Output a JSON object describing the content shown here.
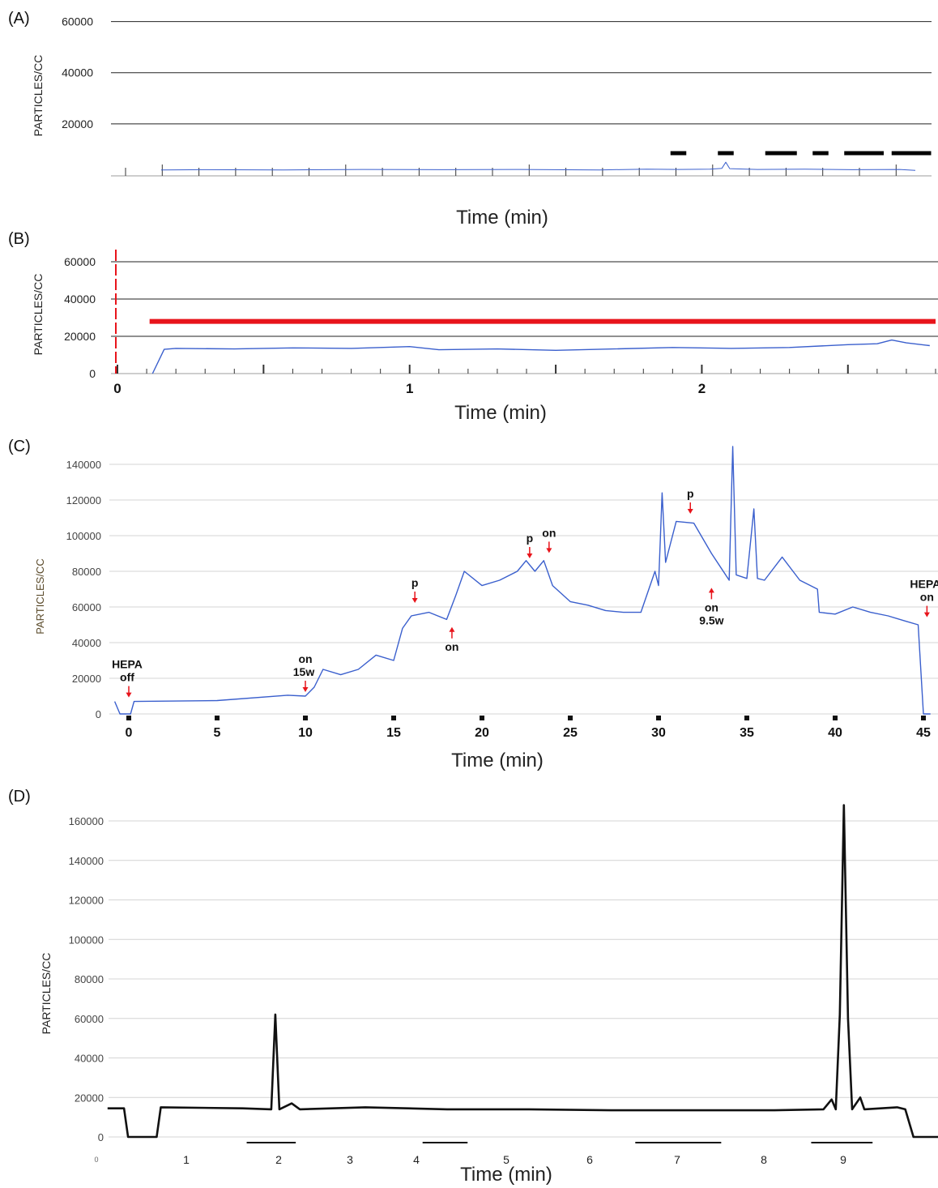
{
  "colors": {
    "trace_blue": "#3a5fcd",
    "trace_black": "#111111",
    "red_bar": "#e8141b",
    "arrow_red": "#e8141b",
    "grid_gray": "#d4d4d4"
  },
  "chart_data": [
    {
      "panel": "(A)",
      "type": "line",
      "ylabel": "PARTICLES/CC",
      "xlabel": "Time (min)",
      "yticks": [
        20000,
        40000,
        60000
      ],
      "ylim": [
        0,
        70000
      ],
      "xlim": [
        0,
        100
      ],
      "grid": true,
      "series": [
        {
          "values": [
            [
              4.5,
              2000
            ],
            [
              10,
              2100
            ],
            [
              20,
              2000
            ],
            [
              30,
              2200
            ],
            [
              40,
              2100
            ],
            [
              50,
              2200
            ],
            [
              60,
              2000
            ],
            [
              66,
              2300
            ],
            [
              70,
              2200
            ],
            [
              74,
              2300
            ],
            [
              75.5,
              2600
            ],
            [
              76,
              5000
            ],
            [
              76.5,
              2500
            ],
            [
              80,
              2200
            ],
            [
              86,
              2300
            ],
            [
              92,
              2100
            ],
            [
              98,
              2200
            ],
            [
              100,
              1800
            ]
          ]
        }
      ],
      "bars": [
        [
          69,
          71
        ],
        [
          75,
          77
        ],
        [
          81,
          85
        ],
        [
          87,
          89
        ],
        [
          91,
          96
        ],
        [
          97,
          102
        ]
      ]
    },
    {
      "panel": "(B)",
      "type": "line",
      "ylabel": "PARTICLES/CC",
      "xlabel": "Time (min)",
      "yticks": [
        0,
        20000,
        40000,
        60000
      ],
      "xticks": [
        0,
        1,
        2
      ],
      "ylim": [
        0,
        70000
      ],
      "xlim": [
        0,
        2.8
      ],
      "grid": true,
      "series": [
        {
          "values": [
            [
              0.12,
              0
            ],
            [
              0.16,
              13000
            ],
            [
              0.2,
              13500
            ],
            [
              0.4,
              13200
            ],
            [
              0.6,
              13800
            ],
            [
              0.8,
              13500
            ],
            [
              1.0,
              14500
            ],
            [
              1.1,
              12800
            ],
            [
              1.3,
              13200
            ],
            [
              1.5,
              12500
            ],
            [
              1.7,
              13200
            ],
            [
              1.9,
              14000
            ],
            [
              2.1,
              13500
            ],
            [
              2.3,
              14000
            ],
            [
              2.5,
              15500
            ],
            [
              2.6,
              16000
            ],
            [
              2.65,
              18000
            ],
            [
              2.7,
              16500
            ],
            [
              2.78,
              15000
            ]
          ]
        }
      ],
      "threshold_line": {
        "value": 28000,
        "from": 0.11,
        "to": 2.8
      }
    },
    {
      "panel": "(C)",
      "type": "line",
      "ylabel": "PARTICLES/CC",
      "xlabel": "Time (min)",
      "yticks": [
        0,
        20000,
        40000,
        60000,
        80000,
        100000,
        120000,
        140000
      ],
      "xticks": [
        0,
        5,
        10,
        15,
        20,
        25,
        30,
        35,
        40,
        45
      ],
      "ylim": [
        0,
        150000
      ],
      "xlim": [
        -1,
        45.5
      ],
      "grid": true,
      "series": [
        {
          "values": [
            [
              -0.8,
              7000
            ],
            [
              -0.5,
              0
            ],
            [
              0.1,
              0
            ],
            [
              0.3,
              7000
            ],
            [
              5,
              7500
            ],
            [
              9,
              10500
            ],
            [
              10,
              10000
            ],
            [
              10.5,
              15000
            ],
            [
              11,
              25000
            ],
            [
              12,
              22000
            ],
            [
              13,
              25000
            ],
            [
              14,
              33000
            ],
            [
              15,
              30000
            ],
            [
              15.5,
              48000
            ],
            [
              16,
              55000
            ],
            [
              17,
              57000
            ],
            [
              18,
              53000
            ],
            [
              18.5,
              66000
            ],
            [
              19,
              80000
            ],
            [
              20,
              72000
            ],
            [
              21,
              75000
            ],
            [
              22,
              80000
            ],
            [
              22.5,
              86000
            ],
            [
              23,
              80000
            ],
            [
              23.5,
              86000
            ],
            [
              24,
              72000
            ],
            [
              25,
              63000
            ],
            [
              26,
              61000
            ],
            [
              27,
              58000
            ],
            [
              28,
              57000
            ],
            [
              29,
              57000
            ],
            [
              29.8,
              80000
            ],
            [
              30,
              72000
            ],
            [
              30.2,
              124000
            ],
            [
              30.4,
              85000
            ],
            [
              31,
              108000
            ],
            [
              32,
              107000
            ],
            [
              33,
              90000
            ],
            [
              34,
              75000
            ],
            [
              34.2,
              150000
            ],
            [
              34.4,
              78000
            ],
            [
              35,
              76000
            ],
            [
              35.4,
              115000
            ],
            [
              35.6,
              76000
            ],
            [
              36,
              75000
            ],
            [
              37,
              88000
            ],
            [
              38,
              75000
            ],
            [
              39,
              70000
            ],
            [
              39.1,
              57000
            ],
            [
              40,
              56000
            ],
            [
              41,
              60000
            ],
            [
              42,
              57000
            ],
            [
              43,
              55000
            ],
            [
              44,
              52000
            ],
            [
              44.7,
              50000
            ],
            [
              45,
              0
            ],
            [
              45.4,
              0
            ]
          ]
        }
      ],
      "annotations": [
        {
          "x": 0,
          "y": 7000,
          "dir": "down",
          "lines": [
            "HEPA",
            "off"
          ]
        },
        {
          "x": 10,
          "y": 10000,
          "dir": "down",
          "lines": [
            "on",
            "15w"
          ]
        },
        {
          "x": 16.2,
          "y": 60000,
          "dir": "down",
          "lines": [
            "p"
          ]
        },
        {
          "x": 18.3,
          "y": 51000,
          "dir": "up",
          "lines": [
            "on"
          ]
        },
        {
          "x": 22.7,
          "y": 85000,
          "dir": "down",
          "lines": [
            "p"
          ]
        },
        {
          "x": 23.8,
          "y": 88000,
          "dir": "down",
          "lines": [
            "on"
          ]
        },
        {
          "x": 31.8,
          "y": 110000,
          "dir": "down",
          "lines": [
            "p"
          ]
        },
        {
          "x": 33,
          "y": 73000,
          "dir": "up",
          "lines": [
            "on",
            "9.5w"
          ]
        },
        {
          "x": 45.2,
          "y": 52000,
          "dir": "down",
          "lines": [
            "HEPA",
            "on"
          ]
        }
      ]
    },
    {
      "panel": "(D)",
      "type": "line",
      "ylabel": "PARTICLES/CC",
      "xlabel": "Time (min)",
      "yticks": [
        0,
        20000,
        40000,
        60000,
        80000,
        100000,
        120000,
        140000,
        160000
      ],
      "xticks": [
        0,
        1,
        2,
        3,
        4,
        5,
        6,
        7,
        8,
        9
      ],
      "ylim": [
        0,
        170000
      ],
      "xlim": [
        -0.15,
        10.05
      ],
      "grid": true,
      "series": [
        {
          "values": [
            [
              -0.15,
              14500
            ],
            [
              0.05,
              14500
            ],
            [
              0.1,
              0
            ],
            [
              0.45,
              0
            ],
            [
              0.5,
              15000
            ],
            [
              1.5,
              14500
            ],
            [
              1.85,
              14000
            ],
            [
              1.9,
              62000
            ],
            [
              1.95,
              14000
            ],
            [
              2.1,
              17000
            ],
            [
              2.2,
              14000
            ],
            [
              3,
              15000
            ],
            [
              4,
              14000
            ],
            [
              5,
              14000
            ],
            [
              6,
              13500
            ],
            [
              7,
              13500
            ],
            [
              8,
              13500
            ],
            [
              8.6,
              14000
            ],
            [
              8.7,
              19000
            ],
            [
              8.75,
              14000
            ],
            [
              8.8,
              62000
            ],
            [
              8.85,
              168000
            ],
            [
              8.9,
              60000
            ],
            [
              8.95,
              14000
            ],
            [
              9.05,
              20000
            ],
            [
              9.1,
              14000
            ],
            [
              9.5,
              15000
            ],
            [
              9.6,
              14000
            ],
            [
              9.7,
              0
            ],
            [
              10.05,
              0
            ]
          ]
        }
      ],
      "bars": [
        [
          1.55,
          2.15
        ],
        [
          3.7,
          4.25
        ],
        [
          6.3,
          7.35
        ],
        [
          8.45,
          9.2
        ]
      ]
    }
  ],
  "panelA": {
    "label": "(A)",
    "ylabel": "PARTICLES/CC",
    "xlabel": "Time (min)"
  },
  "panelB": {
    "label": "(B)",
    "ylabel": "PARTICLES/CC",
    "xlabel": "Time (min)"
  },
  "panelC": {
    "label": "(C)",
    "ylabel": "PARTICLES/CC",
    "xlabel": "Time (min)"
  },
  "panelD": {
    "label": "(D)",
    "ylabel": "PARTICLES/CC",
    "xlabel": "Time (min)",
    "origin_mark": "0"
  }
}
